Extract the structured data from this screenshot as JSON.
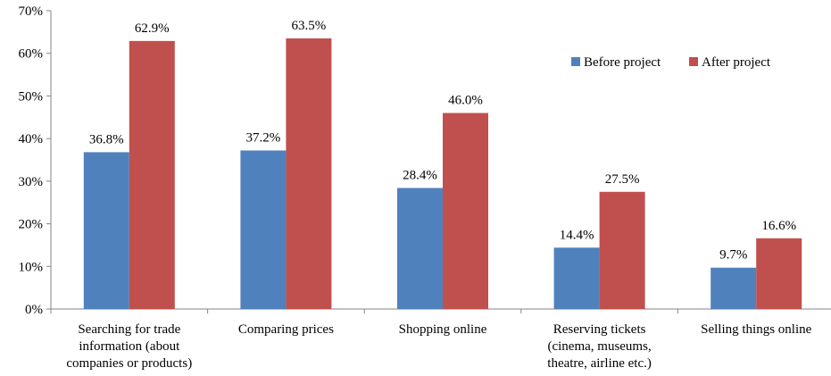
{
  "chart_data": {
    "type": "bar",
    "categories": [
      [
        "Searching for trade",
        "information (about",
        "companies or products)"
      ],
      [
        "Comparing prices"
      ],
      [
        "Shopping online"
      ],
      [
        "Reserving tickets",
        "(cinema, museums,",
        "theatre, airline etc.)"
      ],
      [
        "Selling things online"
      ]
    ],
    "series": [
      {
        "name": "Before project",
        "color": "#4f81bd",
        "values": [
          36.8,
          37.2,
          28.4,
          14.4,
          9.7
        ],
        "labels": [
          "36.8%",
          "37.2%",
          "28.4%",
          "14.4%",
          "9.7%"
        ]
      },
      {
        "name": "After project",
        "color": "#c0504d",
        "values": [
          62.9,
          63.5,
          46.0,
          27.5,
          16.6
        ],
        "labels": [
          "62.9%",
          "63.5%",
          "46.0%",
          "27.5%",
          "16.6%"
        ]
      }
    ],
    "y_ticks": [
      "0%",
      "10%",
      "20%",
      "30%",
      "40%",
      "50%",
      "60%",
      "70%"
    ],
    "ylim": [
      0,
      70
    ],
    "grid": false,
    "legend_position": "top-right"
  }
}
